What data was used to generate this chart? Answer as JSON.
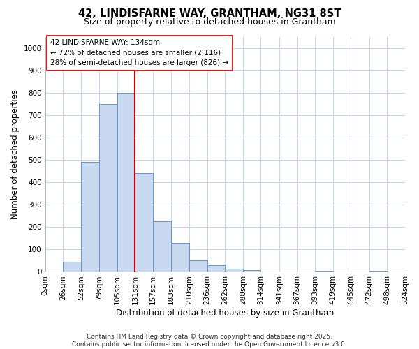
{
  "title": "42, LINDISFARNE WAY, GRANTHAM, NG31 8ST",
  "subtitle": "Size of property relative to detached houses in Grantham",
  "xlabel": "Distribution of detached houses by size in Grantham",
  "ylabel": "Number of detached properties",
  "bin_labels": [
    "0sqm",
    "26sqm",
    "52sqm",
    "79sqm",
    "105sqm",
    "131sqm",
    "157sqm",
    "183sqm",
    "210sqm",
    "236sqm",
    "262sqm",
    "288sqm",
    "314sqm",
    "341sqm",
    "367sqm",
    "393sqm",
    "419sqm",
    "445sqm",
    "472sqm",
    "498sqm",
    "524sqm"
  ],
  "bin_edges": [
    0,
    26,
    52,
    79,
    105,
    131,
    157,
    183,
    210,
    236,
    262,
    288,
    314,
    341,
    367,
    393,
    419,
    445,
    472,
    498,
    524
  ],
  "bar_heights": [
    0,
    45,
    490,
    750,
    800,
    440,
    225,
    130,
    50,
    28,
    15,
    7,
    0,
    0,
    0,
    5,
    0,
    0,
    5,
    0
  ],
  "bar_color": "#c8d8f0",
  "bar_edge_color": "#6699cc",
  "vline_x": 131,
  "vline_color": "#cc0000",
  "ylim": [
    0,
    1050
  ],
  "yticks": [
    0,
    100,
    200,
    300,
    400,
    500,
    600,
    700,
    800,
    900,
    1000
  ],
  "annotation_text": "42 LINDISFARNE WAY: 134sqm\n← 72% of detached houses are smaller (2,116)\n28% of semi-detached houses are larger (826) →",
  "footer_line1": "Contains HM Land Registry data © Crown copyright and database right 2025.",
  "footer_line2": "Contains public sector information licensed under the Open Government Licence v3.0.",
  "bg_color": "#ffffff",
  "grid_color": "#c8d8f0",
  "title_fontsize": 10.5,
  "subtitle_fontsize": 9,
  "axis_label_fontsize": 8.5,
  "tick_fontsize": 7.5,
  "annotation_fontsize": 7.5,
  "footer_fontsize": 6.5
}
